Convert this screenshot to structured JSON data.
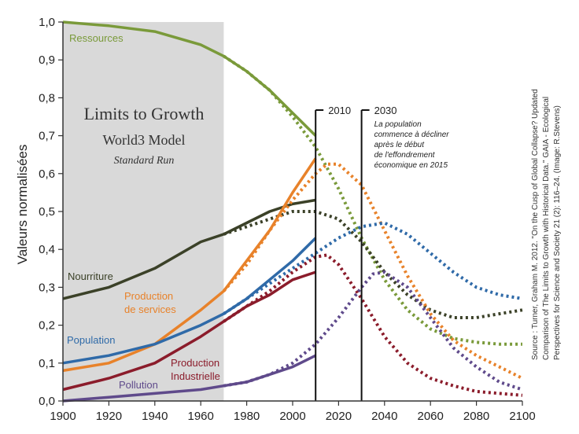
{
  "chart_data": {
    "type": "line",
    "title": "Limits to Growth",
    "subtitle": "World3 Model",
    "subtitle2": "Standard Run",
    "ylabel": "Valeurs normalisées",
    "xlim": [
      1900,
      2100
    ],
    "ylim": [
      0,
      1.0
    ],
    "x_ticks": [
      "1900",
      "1920",
      "1940",
      "1960",
      "1980",
      "2000",
      "2020",
      "2040",
      "2060",
      "2080",
      "2100"
    ],
    "y_ticks": [
      "0,0",
      "0,1",
      "0,2",
      "0,3",
      "0,4",
      "0,5",
      "0,6",
      "0,7",
      "0,8",
      "0,9",
      "1,0"
    ],
    "shaded_period": [
      1900,
      1970
    ],
    "grid": false,
    "markers": [
      {
        "x": 2010,
        "label": "2010"
      },
      {
        "x": 2030,
        "label": "2030",
        "note": [
          "La population",
          "commence à décliner",
          "après le début",
          "de l'effondrement",
          "économique en 2015"
        ]
      }
    ],
    "source_lines": [
      "Source : Turner, Graham M. 2012. \"On the Cusp of Global Collapse? Updated",
      "Comparison of The Limits to Growth with Historical Data.\" GAIA - Ecological",
      "Perspectives for Science and Society 21 (2): 116–24. (Image: R.Stevens)"
    ],
    "series": [
      {
        "name": "Ressources",
        "label_lines": [
          "Ressources"
        ],
        "color": "#7a9a3a",
        "observed": [
          [
            1900,
            1.0
          ],
          [
            1920,
            0.99
          ],
          [
            1940,
            0.975
          ],
          [
            1960,
            0.94
          ],
          [
            1970,
            0.91
          ],
          [
            1980,
            0.87
          ],
          [
            1990,
            0.82
          ],
          [
            2000,
            0.76
          ],
          [
            2010,
            0.7
          ]
        ],
        "model": [
          [
            1970,
            0.91
          ],
          [
            1980,
            0.87
          ],
          [
            1990,
            0.82
          ],
          [
            2000,
            0.75
          ],
          [
            2010,
            0.67
          ],
          [
            2020,
            0.56
          ],
          [
            2030,
            0.43
          ],
          [
            2040,
            0.32
          ],
          [
            2050,
            0.24
          ],
          [
            2060,
            0.19
          ],
          [
            2070,
            0.165
          ],
          [
            2080,
            0.155
          ],
          [
            2090,
            0.15
          ],
          [
            2100,
            0.15
          ]
        ]
      },
      {
        "name": "Nourriture",
        "label_lines": [
          "Nourriture"
        ],
        "color": "#3b4128",
        "observed": [
          [
            1900,
            0.27
          ],
          [
            1920,
            0.3
          ],
          [
            1940,
            0.35
          ],
          [
            1960,
            0.42
          ],
          [
            1970,
            0.44
          ],
          [
            1980,
            0.47
          ],
          [
            1990,
            0.5
          ],
          [
            2000,
            0.52
          ],
          [
            2010,
            0.53
          ]
        ],
        "model": [
          [
            1970,
            0.44
          ],
          [
            1980,
            0.46
          ],
          [
            1990,
            0.48
          ],
          [
            2000,
            0.5
          ],
          [
            2010,
            0.5
          ],
          [
            2020,
            0.48
          ],
          [
            2030,
            0.42
          ],
          [
            2040,
            0.34
          ],
          [
            2050,
            0.28
          ],
          [
            2060,
            0.24
          ],
          [
            2070,
            0.22
          ],
          [
            2080,
            0.22
          ],
          [
            2090,
            0.23
          ],
          [
            2100,
            0.24
          ]
        ]
      },
      {
        "name": "Production de services",
        "label_lines": [
          "Production",
          "de services"
        ],
        "color": "#e8822a",
        "observed": [
          [
            1900,
            0.08
          ],
          [
            1920,
            0.1
          ],
          [
            1940,
            0.15
          ],
          [
            1960,
            0.24
          ],
          [
            1970,
            0.29
          ],
          [
            1980,
            0.37
          ],
          [
            1990,
            0.45
          ],
          [
            2000,
            0.55
          ],
          [
            2010,
            0.64
          ]
        ],
        "model": [
          [
            1970,
            0.29
          ],
          [
            1980,
            0.36
          ],
          [
            1990,
            0.45
          ],
          [
            2000,
            0.53
          ],
          [
            2010,
            0.6
          ],
          [
            2015,
            0.625
          ],
          [
            2020,
            0.625
          ],
          [
            2030,
            0.57
          ],
          [
            2040,
            0.45
          ],
          [
            2050,
            0.33
          ],
          [
            2060,
            0.23
          ],
          [
            2070,
            0.16
          ],
          [
            2080,
            0.12
          ],
          [
            2090,
            0.09
          ],
          [
            2100,
            0.06
          ]
        ]
      },
      {
        "name": "Population",
        "label_lines": [
          "Population"
        ],
        "color": "#2f6aa8",
        "observed": [
          [
            1900,
            0.1
          ],
          [
            1920,
            0.12
          ],
          [
            1940,
            0.15
          ],
          [
            1960,
            0.2
          ],
          [
            1970,
            0.23
          ],
          [
            1980,
            0.27
          ],
          [
            1990,
            0.32
          ],
          [
            2000,
            0.37
          ],
          [
            2010,
            0.43
          ]
        ],
        "model": [
          [
            1970,
            0.23
          ],
          [
            1980,
            0.27
          ],
          [
            1990,
            0.31
          ],
          [
            2000,
            0.35
          ],
          [
            2010,
            0.39
          ],
          [
            2020,
            0.43
          ],
          [
            2030,
            0.46
          ],
          [
            2040,
            0.47
          ],
          [
            2050,
            0.44
          ],
          [
            2060,
            0.39
          ],
          [
            2070,
            0.34
          ],
          [
            2080,
            0.3
          ],
          [
            2090,
            0.28
          ],
          [
            2100,
            0.27
          ]
        ]
      },
      {
        "name": "Production industrielle",
        "label_lines": [
          "Production",
          "Industrielle"
        ],
        "color": "#8b1c2b",
        "observed": [
          [
            1900,
            0.03
          ],
          [
            1920,
            0.06
          ],
          [
            1940,
            0.1
          ],
          [
            1960,
            0.17
          ],
          [
            1970,
            0.21
          ],
          [
            1980,
            0.25
          ],
          [
            1990,
            0.28
          ],
          [
            2000,
            0.32
          ],
          [
            2010,
            0.34
          ]
        ],
        "model": [
          [
            1970,
            0.21
          ],
          [
            1980,
            0.25
          ],
          [
            1990,
            0.29
          ],
          [
            2000,
            0.34
          ],
          [
            2010,
            0.38
          ],
          [
            2015,
            0.385
          ],
          [
            2020,
            0.36
          ],
          [
            2030,
            0.27
          ],
          [
            2040,
            0.17
          ],
          [
            2050,
            0.1
          ],
          [
            2060,
            0.06
          ],
          [
            2070,
            0.04
          ],
          [
            2080,
            0.025
          ],
          [
            2090,
            0.02
          ],
          [
            2100,
            0.015
          ]
        ]
      },
      {
        "name": "Pollution",
        "label_lines": [
          "Pollution"
        ],
        "color": "#5f4a8b",
        "observed": [
          [
            1900,
            0.0
          ],
          [
            1920,
            0.01
          ],
          [
            1940,
            0.02
          ],
          [
            1960,
            0.03
          ],
          [
            1970,
            0.04
          ],
          [
            1980,
            0.05
          ],
          [
            1990,
            0.07
          ],
          [
            2000,
            0.09
          ],
          [
            2010,
            0.12
          ]
        ],
        "model": [
          [
            1970,
            0.04
          ],
          [
            1980,
            0.05
          ],
          [
            1990,
            0.07
          ],
          [
            2000,
            0.1
          ],
          [
            2010,
            0.15
          ],
          [
            2020,
            0.22
          ],
          [
            2030,
            0.3
          ],
          [
            2035,
            0.335
          ],
          [
            2040,
            0.34
          ],
          [
            2050,
            0.3
          ],
          [
            2060,
            0.22
          ],
          [
            2070,
            0.14
          ],
          [
            2080,
            0.09
          ],
          [
            2090,
            0.05
          ],
          [
            2100,
            0.03
          ]
        ]
      }
    ]
  }
}
